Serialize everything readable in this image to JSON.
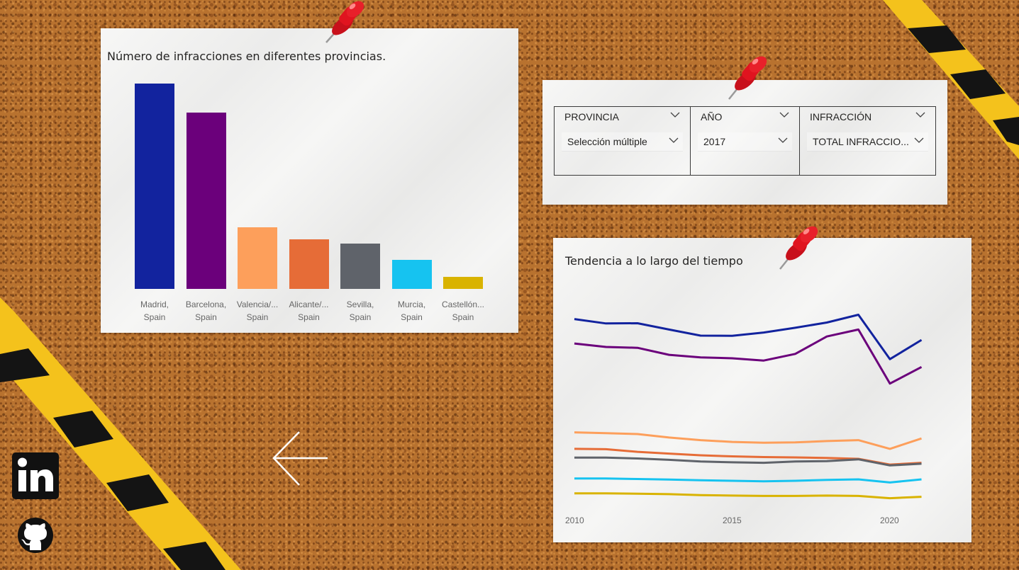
{
  "bar_chart": {
    "title": "Número de infracciones en diferentes provincias.",
    "chart_data": {
      "type": "bar",
      "categories": [
        "Madrid, Spain",
        "Barcelona, Spain",
        "Valencia/... Spain",
        "Alicante/... Spain",
        "Sevilla, Spain",
        "Murcia, Spain",
        "Castellón... Spain"
      ],
      "label_lines": [
        [
          "Madrid,",
          "Spain"
        ],
        [
          "Barcelona,",
          "Spain"
        ],
        [
          "Valencia/...",
          "Spain"
        ],
        [
          "Alicante/...",
          "Spain"
        ],
        [
          "Sevilla,",
          "Spain"
        ],
        [
          "Murcia,",
          "Spain"
        ],
        [
          "Castellón...",
          "Spain"
        ]
      ],
      "values": [
        100,
        86,
        30,
        24,
        22,
        14,
        6
      ],
      "colors": [
        "#12239e",
        "#6b007b",
        "#fd9f5b",
        "#e66c37",
        "#5f636a",
        "#16c3f0",
        "#d9b300"
      ],
      "ylim": [
        0,
        100
      ]
    }
  },
  "slicers": {
    "provincia": {
      "header": "PROVINCIA",
      "value": "Selección múltiple"
    },
    "anio": {
      "header": "AÑO",
      "value": "2017"
    },
    "infraccion": {
      "header": "INFRACCIÓN",
      "value": "TOTAL INFRACCIO..."
    }
  },
  "line_chart": {
    "title": "Tendencia a lo largo del tiempo",
    "chart_data": {
      "type": "line",
      "x": [
        2010,
        2011,
        2012,
        2013,
        2014,
        2015,
        2016,
        2017,
        2018,
        2019,
        2020,
        2021
      ],
      "x_ticks": [
        "2010",
        "2015",
        "2020"
      ],
      "ylim": [
        0,
        100
      ],
      "series": [
        {
          "color": "#12239e",
          "values": [
            90,
            87.5,
            87.6,
            84,
            80.5,
            80.4,
            82.3,
            85,
            88,
            92.5,
            67,
            78
          ]
        },
        {
          "color": "#6b007b",
          "values": [
            76,
            74,
            73.5,
            69.5,
            68,
            67.5,
            66.2,
            70,
            80,
            84,
            53,
            62.5
          ]
        },
        {
          "color": "#fd9f5b",
          "values": [
            25,
            24.5,
            24,
            22,
            20.5,
            19.5,
            19,
            19.2,
            20,
            20.5,
            15.5,
            21.5
          ]
        },
        {
          "color": "#e66c37",
          "values": [
            15.5,
            15.3,
            13.8,
            12.8,
            11.8,
            11.2,
            10.8,
            10.6,
            10.3,
            9.8,
            6.5,
            7.5
          ]
        },
        {
          "color": "#5f636a",
          "values": [
            10.5,
            10.5,
            10,
            9.2,
            8.3,
            7.8,
            7.5,
            8.3,
            8.5,
            9.5,
            6,
            7
          ]
        },
        {
          "color": "#16c3f0",
          "values": [
            -1.5,
            -1.5,
            -1.8,
            -2.1,
            -2.5,
            -2.8,
            -3.1,
            -2.8,
            -2.3,
            -2,
            -3.8,
            -2
          ]
        },
        {
          "color": "#d9b300",
          "values": [
            -10,
            -10,
            -10.2,
            -10.5,
            -11,
            -11.3,
            -11.5,
            -11.5,
            -11.3,
            -11.5,
            -12.8,
            -12
          ]
        }
      ]
    }
  },
  "nav": {
    "back_arrow": "arrow-left-icon"
  },
  "social": {
    "linkedin": "linkedin-icon",
    "github": "github-icon"
  }
}
